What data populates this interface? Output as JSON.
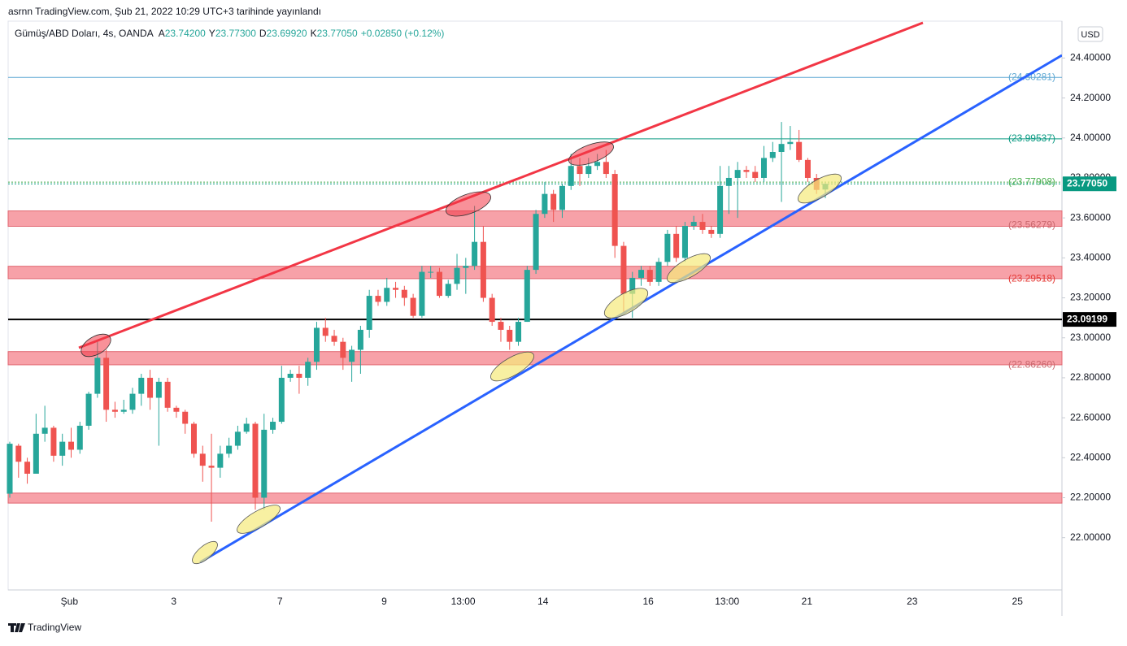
{
  "header": {
    "published": "asrnn TradingView.com, Şub 21, 2022 10:29 UTC+3 tarihinde yayınlandı",
    "footer": "TradingView"
  },
  "chart_data": {
    "type": "candlestick",
    "symbol": "Gümüş/ABD Doları, 4s, OANDA",
    "ohlc_legend": [
      {
        "key": "A",
        "value": "23.74200"
      },
      {
        "key": "Y",
        "value": "23.77300"
      },
      {
        "key": "D",
        "value": "23.69920"
      },
      {
        "key": "K",
        "value": "23.77050"
      }
    ],
    "change": "+0.02850 (+0.12%)",
    "currency": "USD",
    "up_color": "#26a69a",
    "down_color": "#ef5350",
    "open": [
      22.22,
      22.46,
      22.38,
      22.32,
      22.52,
      22.55,
      22.41,
      22.48,
      22.44,
      22.56,
      22.72,
      22.9,
      22.64,
      22.63,
      22.64,
      22.72,
      22.8,
      22.7,
      22.78,
      22.65,
      22.63,
      22.57,
      22.42,
      22.36,
      22.35,
      22.42,
      22.46,
      22.53,
      22.57,
      22.2,
      22.54,
      22.58,
      22.8,
      22.82,
      22.8,
      22.88,
      23.05,
      23.01,
      22.98,
      22.88,
      22.94,
      23.04,
      23.21,
      23.18,
      23.25,
      23.24,
      23.2,
      23.11,
      23.33,
      23.33,
      23.21,
      23.27,
      23.35,
      23.36,
      23.48,
      23.2,
      23.08,
      23.04,
      22.98,
      23.08,
      23.34,
      23.62,
      23.72,
      23.64,
      23.76,
      23.86,
      23.82,
      23.86,
      23.88,
      23.82,
      23.46,
      23.22,
      23.3,
      23.34,
      23.28,
      23.38,
      23.52,
      23.4,
      23.56,
      23.58,
      23.54,
      23.52,
      23.76,
      23.8,
      23.84,
      23.83,
      23.8,
      23.9,
      23.93,
      23.97,
      23.98,
      23.89,
      23.8,
      23.742
    ],
    "high": [
      22.48,
      22.47,
      22.4,
      22.62,
      22.66,
      22.56,
      22.52,
      22.55,
      22.58,
      22.73,
      22.98,
      22.94,
      22.68,
      22.69,
      22.75,
      22.82,
      22.84,
      22.8,
      22.8,
      22.66,
      22.64,
      22.58,
      22.46,
      22.52,
      22.46,
      22.5,
      22.56,
      22.6,
      22.58,
      22.62,
      22.6,
      22.86,
      22.84,
      22.86,
      22.9,
      23.08,
      23.1,
      23.04,
      23.0,
      22.96,
      23.06,
      23.24,
      23.24,
      23.3,
      23.28,
      23.26,
      23.22,
      23.36,
      23.36,
      23.35,
      23.29,
      23.42,
      23.4,
      23.66,
      23.56,
      23.22,
      23.1,
      23.06,
      23.1,
      23.36,
      23.64,
      23.78,
      23.74,
      23.77,
      23.92,
      23.9,
      23.9,
      23.92,
      23.94,
      23.84,
      23.48,
      23.33,
      23.36,
      23.36,
      23.4,
      23.54,
      23.56,
      23.58,
      23.61,
      23.62,
      23.56,
      23.86,
      23.86,
      23.88,
      23.86,
      23.86,
      23.96,
      23.98,
      24.08,
      24.06,
      24.04,
      23.9,
      23.82,
      23.773
    ],
    "low": [
      22.2,
      22.3,
      22.27,
      22.34,
      22.48,
      22.38,
      22.36,
      22.4,
      22.42,
      22.54,
      22.7,
      22.58,
      22.6,
      22.62,
      22.62,
      22.66,
      22.64,
      22.46,
      22.63,
      22.6,
      22.52,
      22.4,
      22.28,
      22.08,
      22.3,
      22.4,
      22.44,
      22.52,
      22.14,
      22.14,
      22.52,
      22.57,
      22.78,
      22.72,
      22.76,
      22.84,
      22.98,
      22.96,
      22.84,
      22.78,
      22.82,
      23.0,
      23.16,
      23.16,
      23.2,
      23.16,
      23.1,
      23.1,
      23.3,
      23.2,
      23.2,
      23.24,
      23.22,
      23.34,
      23.18,
      23.06,
      22.98,
      22.94,
      22.96,
      23.08,
      23.32,
      23.6,
      23.58,
      23.6,
      23.74,
      23.76,
      23.8,
      23.84,
      23.8,
      23.4,
      23.12,
      23.1,
      23.26,
      23.26,
      23.26,
      23.36,
      23.38,
      23.38,
      23.54,
      23.52,
      23.5,
      23.5,
      23.62,
      23.6,
      23.8,
      23.78,
      23.78,
      23.88,
      23.68,
      23.94,
      23.88,
      23.78,
      23.72,
      23.6992
    ],
    "close": [
      22.47,
      22.38,
      22.32,
      22.52,
      22.55,
      22.41,
      22.48,
      22.44,
      22.56,
      22.72,
      22.9,
      22.64,
      22.63,
      22.64,
      22.72,
      22.8,
      22.7,
      22.78,
      22.65,
      22.63,
      22.57,
      22.42,
      22.36,
      22.35,
      22.42,
      22.46,
      22.53,
      22.57,
      22.2,
      22.54,
      22.58,
      22.8,
      22.82,
      22.8,
      22.88,
      23.05,
      23.01,
      22.98,
      22.9,
      22.94,
      23.04,
      23.21,
      23.18,
      23.25,
      23.24,
      23.2,
      23.11,
      23.33,
      23.33,
      23.21,
      23.27,
      23.35,
      23.36,
      23.48,
      23.2,
      23.08,
      23.04,
      22.98,
      23.08,
      23.34,
      23.62,
      23.72,
      23.64,
      23.76,
      23.86,
      23.82,
      23.86,
      23.88,
      23.82,
      23.46,
      23.22,
      23.3,
      23.34,
      23.28,
      23.38,
      23.52,
      23.4,
      23.56,
      23.58,
      23.54,
      23.52,
      23.76,
      23.8,
      23.84,
      23.83,
      23.8,
      23.9,
      23.93,
      23.97,
      23.98,
      23.89,
      23.8,
      23.74,
      23.7705
    ],
    "ylim": [
      21.7385,
      24.5846
    ],
    "yticks": [
      {
        "value": 22.0,
        "label": "22.00000"
      },
      {
        "value": 22.2,
        "label": "22.20000"
      },
      {
        "value": 22.4,
        "label": "22.40000"
      },
      {
        "value": 22.6,
        "label": "22.60000"
      },
      {
        "value": 22.8,
        "label": "22.80000"
      },
      {
        "value": 23.0,
        "label": "23.00000"
      },
      {
        "value": 23.2,
        "label": "23.20000"
      },
      {
        "value": 23.4,
        "label": "23.40000"
      },
      {
        "value": 23.6,
        "label": "23.60000"
      },
      {
        "value": 23.8,
        "label": "23.80000"
      },
      {
        "value": 24.0,
        "label": "24.00000"
      },
      {
        "value": 24.2,
        "label": "24.20000"
      },
      {
        "value": 24.4,
        "label": "24.40000"
      }
    ],
    "xticks": [
      {
        "value": 6.8,
        "label": "Şub"
      },
      {
        "value": 18.7,
        "label": "3"
      },
      {
        "value": 30.8,
        "label": "7"
      },
      {
        "value": 42.7,
        "label": "9"
      },
      {
        "value": 51.7,
        "label": "13:00"
      },
      {
        "value": 60.8,
        "label": "14"
      },
      {
        "value": 72.8,
        "label": "16"
      },
      {
        "value": 81.8,
        "label": "13:00"
      },
      {
        "value": 90.9,
        "label": "21"
      },
      {
        "value": 102.9,
        "label": "23"
      },
      {
        "value": 114.9,
        "label": "25"
      }
    ],
    "zones": [
      {
        "low": 23.558,
        "high": 23.635,
        "color": "#f7a1a8"
      },
      {
        "low": 23.296,
        "high": 23.358,
        "color": "#f7a1a8"
      },
      {
        "low": 22.865,
        "high": 22.931,
        "color": "#f7a1a8"
      },
      {
        "low": 22.173,
        "high": 22.223,
        "color": "#f7a1a8"
      }
    ],
    "levels": [
      {
        "value": 24.30281,
        "label": "(24.30281)",
        "color": "#5fa8d3",
        "line": "solid"
      },
      {
        "value": 23.99537,
        "label": "(23.99537)",
        "color": "#089981",
        "line": "solid"
      },
      {
        "value": 23.77908,
        "label": "(23.77908)",
        "color": "#4caf50",
        "line": "dotted"
      },
      {
        "value": 23.56279,
        "label": "(23.56279)",
        "color": "#c9686e",
        "line": "none"
      },
      {
        "value": 23.29518,
        "label": "(23.29518)",
        "color": "#e53935",
        "line": "none"
      },
      {
        "value": 22.8626,
        "label": "(22.86260)",
        "color": "#c9686e",
        "line": "none"
      }
    ],
    "price_lines": [
      {
        "value": 23.09199,
        "label": "23.09199",
        "color": "#000000",
        "line": "solid"
      },
      {
        "value": 23.7705,
        "label": "23.77050",
        "color": "#089981",
        "line": "dotted"
      }
    ]
  }
}
